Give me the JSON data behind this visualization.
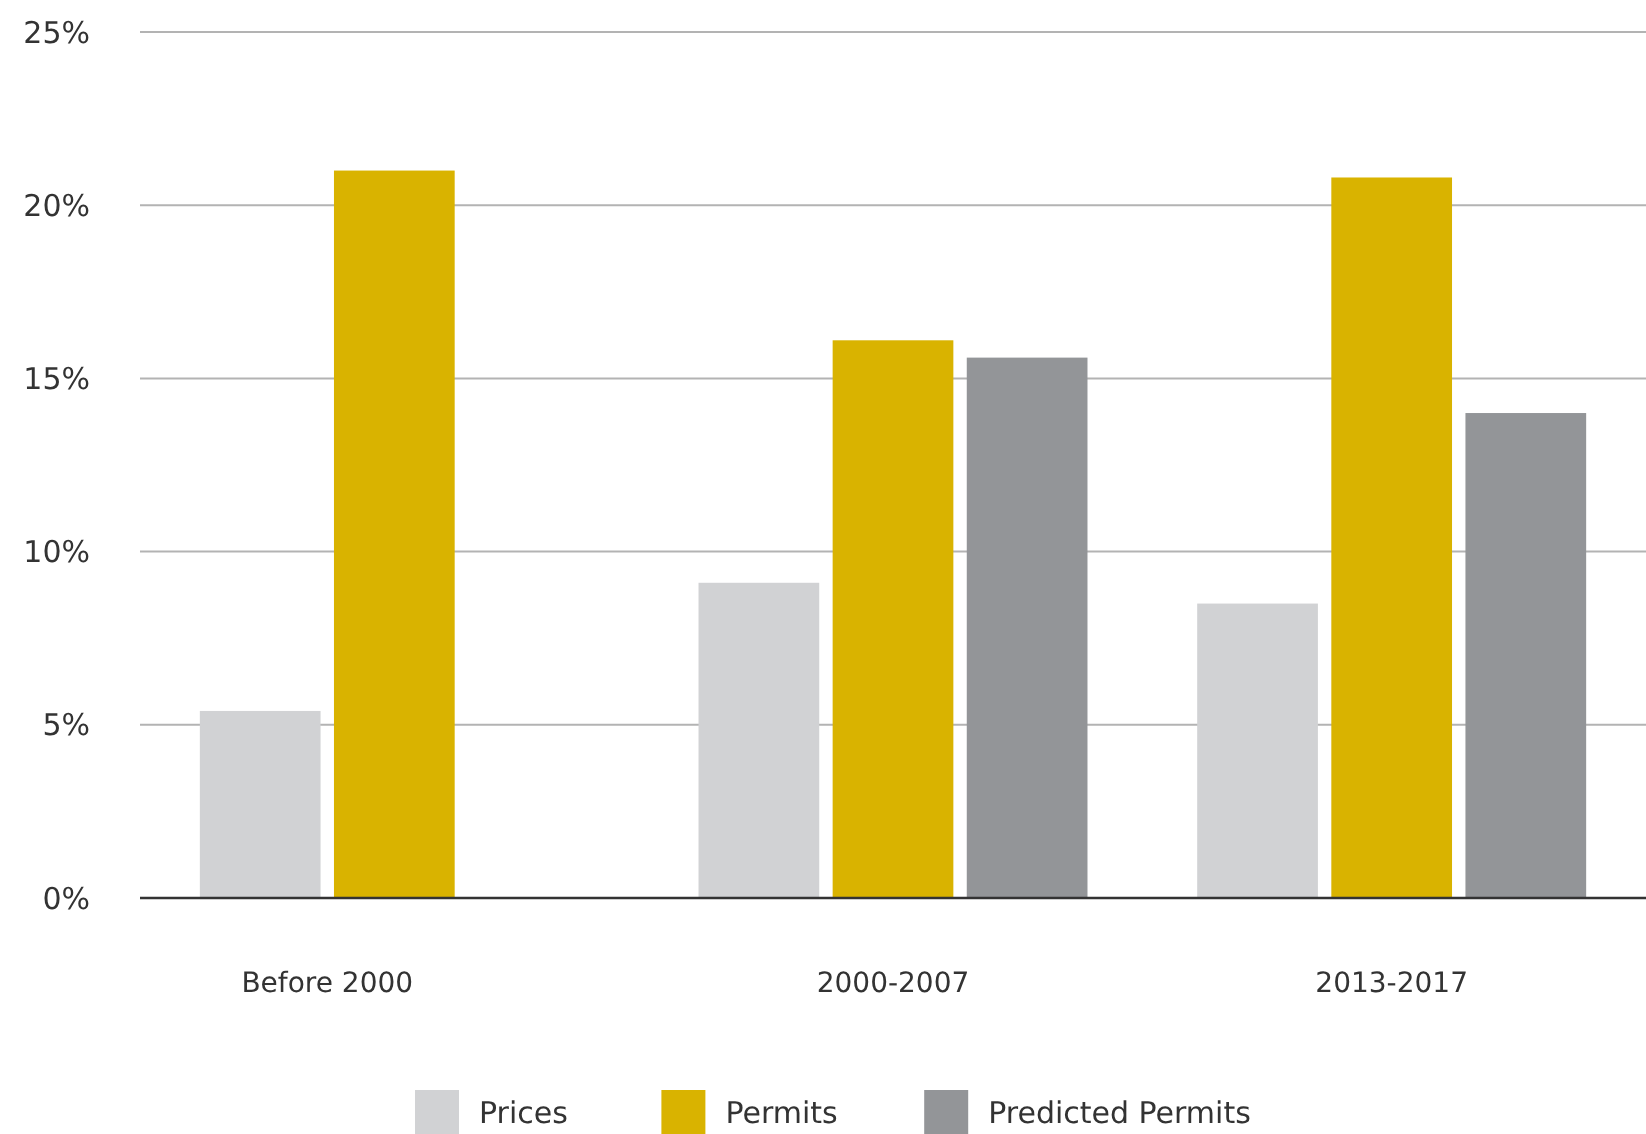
{
  "chart_data": {
    "type": "bar",
    "categories": [
      "Before 2000",
      "2000-2007",
      "2013-2017"
    ],
    "series": [
      {
        "name": "Prices",
        "color": "#d1d2d4",
        "values": [
          5.4,
          9.1,
          8.5
        ]
      },
      {
        "name": "Permits",
        "color": "#d9b300",
        "values": [
          21.0,
          16.1,
          20.8
        ]
      },
      {
        "name": "Predicted Permits",
        "color": "#939598",
        "values": [
          null,
          15.6,
          14.0
        ]
      }
    ],
    "ylim": [
      0,
      25
    ],
    "yticks": [
      {
        "value": 0,
        "label": "0%"
      },
      {
        "value": 5,
        "label": "5%"
      },
      {
        "value": 10,
        "label": "10%"
      },
      {
        "value": 15,
        "label": "15%"
      },
      {
        "value": 20,
        "label": "20%"
      },
      {
        "value": 25,
        "label": "25%"
      }
    ],
    "grid": "y",
    "legend": "bottom"
  }
}
